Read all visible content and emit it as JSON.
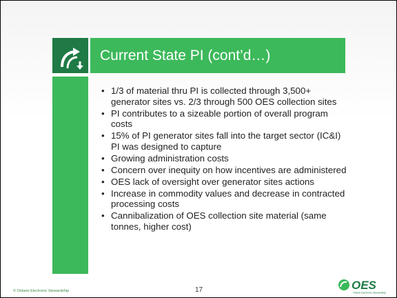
{
  "slide": {
    "title": "Current State PI (cont’d…)",
    "bullets": [
      "1/3 of material thru PI is collected through 3,500+ generator sites vs. 2/3 through 500 OES collection sites",
      "PI contributes to a sizeable portion of overall program costs",
      "15% of PI generator sites fall into the target sector (IC&I) PI was designed to capture",
      "Growing administration costs",
      "Concern over inequity on how incentives are administered",
      "OES lack of oversight over generator sites actions",
      "Increase in commodity values and decrease in contracted processing costs",
      "Cannibalization of OES collection site material (same tonnes, higher cost)"
    ],
    "footer": {
      "copyright": "© Ontario Electronic Stewardship",
      "page_number": "17",
      "logo_text": "OES",
      "logo_subtext": "Ontario Electronic Stewardship"
    }
  }
}
